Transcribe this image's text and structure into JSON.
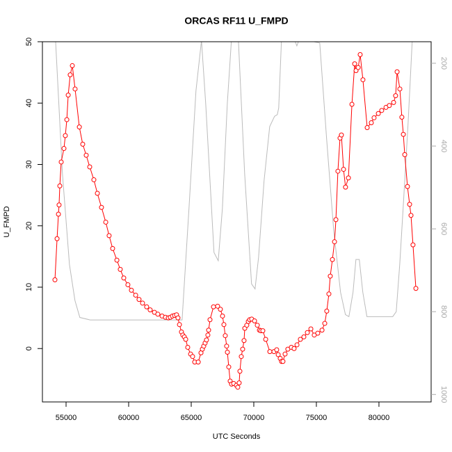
{
  "chart_data": {
    "type": "line-points",
    "title": "ORCAS RF11 U_FMPD",
    "x_label": "UTC Seconds",
    "y_label": "U_FMPD",
    "xlim": [
      53110,
      84170
    ],
    "xticks": [
      55000,
      60000,
      65000,
      70000,
      75000,
      80000
    ],
    "ylim": [
      -8.7,
      50
    ],
    "yticks": [
      0,
      10,
      20,
      30,
      40,
      50
    ],
    "y2lim": [
      1018,
      148
    ],
    "y2ticks": [
      200,
      400,
      600,
      800,
      1000
    ],
    "series": [
      {
        "color": "#bbbbbb",
        "axis": "y2",
        "markers": false,
        "x": [
          54160,
          54710,
          55270,
          55710,
          56100,
          56930,
          64270,
          64820,
          65380,
          65820,
          66160,
          66820,
          67160,
          67490,
          67880,
          68210,
          68770,
          69270,
          69820,
          70100,
          70380,
          70820,
          71270,
          71660,
          71880,
          71990,
          72210,
          73270,
          73440,
          73600,
          74320,
          75270,
          75820,
          76380,
          76930,
          77320,
          77600,
          77930,
          78160,
          78430,
          78710,
          79040,
          81100,
          81380,
          81660,
          81930,
          82320,
          82660
        ],
        "values": [
          145,
          467,
          686,
          773,
          814,
          820,
          820,
          551,
          266,
          145,
          299,
          657,
          677,
          551,
          299,
          145,
          145,
          467,
          733,
          745,
          669,
          484,
          353,
          328,
          324,
          308,
          145,
          145,
          158,
          145,
          145,
          151,
          383,
          602,
          753,
          807,
          812,
          753,
          674,
          674,
          753,
          812,
          812,
          800,
          686,
          551,
          350,
          145
        ]
      },
      {
        "color": "#ff0000",
        "markers": true,
        "x": [
          54110,
          54280,
          54390,
          54440,
          54500,
          54610,
          54830,
          54940,
          55060,
          55170,
          55330,
          55500,
          55720,
          56060,
          56330,
          56610,
          56890,
          57220,
          57500,
          57830,
          58170,
          58440,
          58720,
          59060,
          59330,
          59610,
          59940,
          60220,
          60560,
          60830,
          61110,
          61440,
          61720,
          62060,
          62330,
          62670,
          62940,
          63170,
          63330,
          63500,
          63670,
          63830,
          63940,
          64060,
          64220,
          64330,
          64450,
          64560,
          64720,
          64950,
          65110,
          65280,
          65560,
          65780,
          65890,
          66000,
          66110,
          66220,
          66330,
          66390,
          66500,
          66780,
          67110,
          67330,
          67500,
          67610,
          67720,
          67830,
          67890,
          68000,
          68110,
          68220,
          68390,
          68610,
          68720,
          68830,
          68890,
          69000,
          69110,
          69220,
          69280,
          69440,
          69560,
          69670,
          69830,
          70060,
          70280,
          70450,
          70560,
          70720,
          70950,
          71280,
          71610,
          71830,
          71950,
          72110,
          72220,
          72330,
          72500,
          72720,
          73000,
          73220,
          73450,
          73720,
          74000,
          74280,
          74560,
          74830,
          75110,
          75450,
          75670,
          75830,
          76000,
          76110,
          76280,
          76450,
          76560,
          76720,
          76890,
          77000,
          77170,
          77330,
          77560,
          77840,
          78060,
          78170,
          78340,
          78500,
          78720,
          79060,
          79390,
          79610,
          79950,
          80220,
          80560,
          80830,
          81170,
          81330,
          81450,
          81670,
          81830,
          81950,
          82060,
          82280,
          82450,
          82560,
          82720,
          82950
        ],
        "values": [
          11.2,
          17.9,
          21.9,
          23.4,
          26.5,
          30.4,
          32.6,
          34.7,
          37.3,
          41.3,
          44.6,
          46.1,
          42.3,
          36.1,
          33.3,
          31.5,
          29.6,
          27.5,
          25.3,
          23.0,
          20.6,
          18.4,
          16.3,
          14.4,
          12.9,
          11.5,
          10.4,
          9.5,
          8.7,
          8.0,
          7.4,
          6.8,
          6.3,
          5.9,
          5.6,
          5.3,
          5.1,
          5.0,
          5.1,
          5.3,
          5.4,
          5.5,
          5.0,
          3.9,
          2.7,
          2.2,
          1.9,
          1.5,
          0.2,
          -0.9,
          -1.3,
          -2.2,
          -2.2,
          -0.7,
          -0.1,
          0.4,
          0.9,
          1.4,
          2.2,
          3.0,
          4.7,
          6.8,
          6.9,
          6.4,
          5.3,
          3.9,
          2.1,
          0.4,
          -0.6,
          -3.0,
          -5.3,
          -5.8,
          -5.7,
          -6.0,
          -6.3,
          -5.6,
          -3.7,
          -1.3,
          -0.1,
          1.3,
          3.3,
          3.8,
          4.4,
          4.7,
          4.8,
          4.5,
          3.8,
          3.0,
          2.9,
          2.9,
          1.5,
          -0.5,
          -0.5,
          -0.2,
          -1.0,
          -1.6,
          -2.1,
          -2.1,
          -0.9,
          -0.1,
          0.2,
          0.0,
          0.6,
          1.5,
          1.9,
          2.6,
          3.2,
          2.2,
          2.5,
          3.0,
          4.1,
          6.1,
          8.9,
          11.8,
          14.5,
          17.4,
          21.0,
          28.9,
          34.3,
          34.8,
          29.2,
          26.3,
          27.8,
          39.8,
          46.4,
          45.3,
          45.8,
          47.9,
          43.8,
          36.0,
          36.8,
          37.6,
          38.3,
          38.8,
          39.3,
          39.6,
          40.1,
          41.2,
          45.1,
          42.3,
          37.7,
          34.9,
          31.6,
          26.4,
          23.5,
          21.7,
          16.9,
          9.8
        ]
      }
    ]
  }
}
